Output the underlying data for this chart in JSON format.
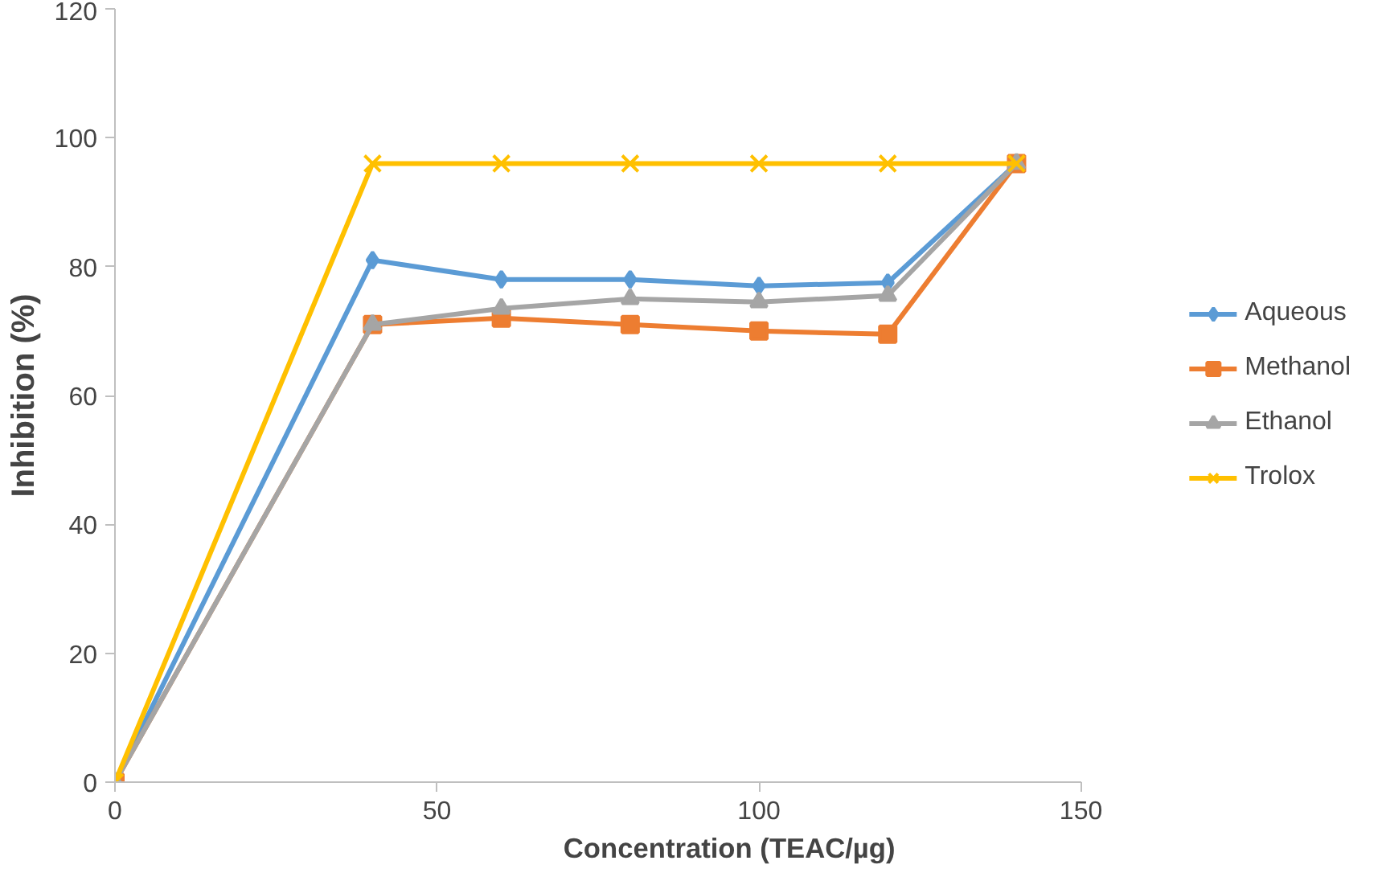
{
  "chart_data": {
    "type": "line",
    "xlabel": "Concentration  (TEAC/µg)",
    "ylabel": "Inhibition (%)",
    "x": [
      0,
      40,
      60,
      80,
      100,
      120,
      140
    ],
    "series": [
      {
        "name": "Aqueous",
        "color": "#5b9bd5",
        "marker": "diamond",
        "values": [
          0,
          81,
          78,
          78,
          77,
          77.5,
          96
        ]
      },
      {
        "name": "Methanol",
        "color": "#ed7d31",
        "marker": "square",
        "values": [
          0,
          71,
          72,
          71,
          70,
          69.5,
          96
        ]
      },
      {
        "name": "Ethanol",
        "color": "#a5a5a5",
        "marker": "triangle",
        "values": [
          0,
          71,
          73.5,
          75,
          74.5,
          75.5,
          96
        ]
      },
      {
        "name": "Trolox",
        "color": "#ffc000",
        "marker": "cross",
        "values": [
          0,
          96,
          96,
          96,
          96,
          96,
          96
        ]
      }
    ],
    "xlim": [
      0,
      150
    ],
    "xticks": [
      0,
      50,
      100,
      150
    ],
    "ylim": [
      0,
      120
    ],
    "yticks": [
      0,
      20,
      40,
      60,
      80,
      100,
      120
    ],
    "grid": false,
    "legend": "right"
  }
}
